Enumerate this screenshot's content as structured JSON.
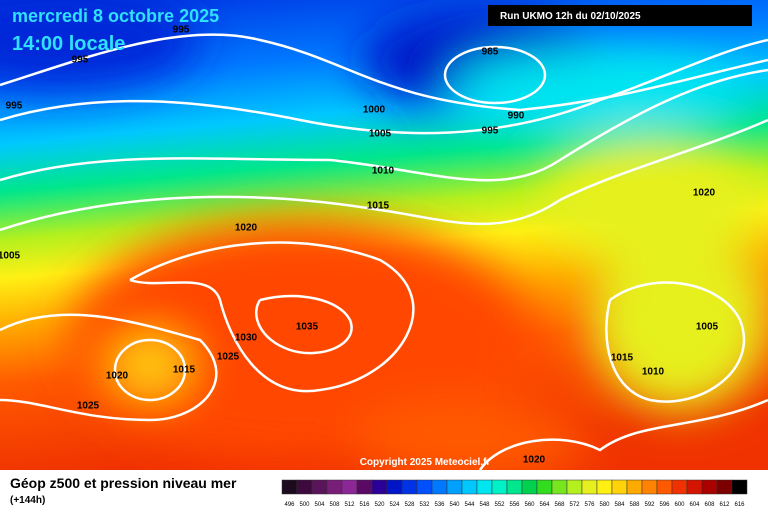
{
  "header": {
    "date": "mercredi 8 octobre 2025",
    "time": "14:00 locale",
    "run": "Run UKMO 12h du 02/10/2025"
  },
  "isobars": [
    995,
    995,
    995,
    985,
    1000,
    990,
    1005,
    995,
    1010,
    1015,
    1020,
    1020,
    1005,
    1035,
    1030,
    1025,
    1020,
    1015,
    1025,
    1015,
    1010,
    1005,
    1020
  ],
  "copyright": "Copyright 2025 Meteociel.fr",
  "footer": {
    "title": "Géop z500 et pression niveau mer",
    "lead": "(+144h)"
  },
  "scale": {
    "values": [
      496,
      500,
      504,
      508,
      512,
      516,
      520,
      524,
      528,
      532,
      536,
      540,
      544,
      548,
      552,
      556,
      560,
      564,
      568,
      572,
      576,
      580,
      584,
      588,
      592,
      596,
      600,
      604,
      608,
      612,
      616
    ],
    "colors": [
      "#1e0a1e",
      "#3c0a3c",
      "#5a145a",
      "#781e78",
      "#8c2896",
      "#5a0a64",
      "#2a0096",
      "#0014c8",
      "#0032e6",
      "#0050ff",
      "#0078ff",
      "#00a0ff",
      "#00c8ff",
      "#00e6f0",
      "#00f0c8",
      "#00e68c",
      "#00d250",
      "#32dc1e",
      "#78e61e",
      "#b4f01e",
      "#e6f01e",
      "#fff014",
      "#ffd20a",
      "#ffaa00",
      "#ff8200",
      "#ff5a00",
      "#f03200",
      "#d21400",
      "#aa0000",
      "#7d0000",
      "#000000"
    ]
  }
}
